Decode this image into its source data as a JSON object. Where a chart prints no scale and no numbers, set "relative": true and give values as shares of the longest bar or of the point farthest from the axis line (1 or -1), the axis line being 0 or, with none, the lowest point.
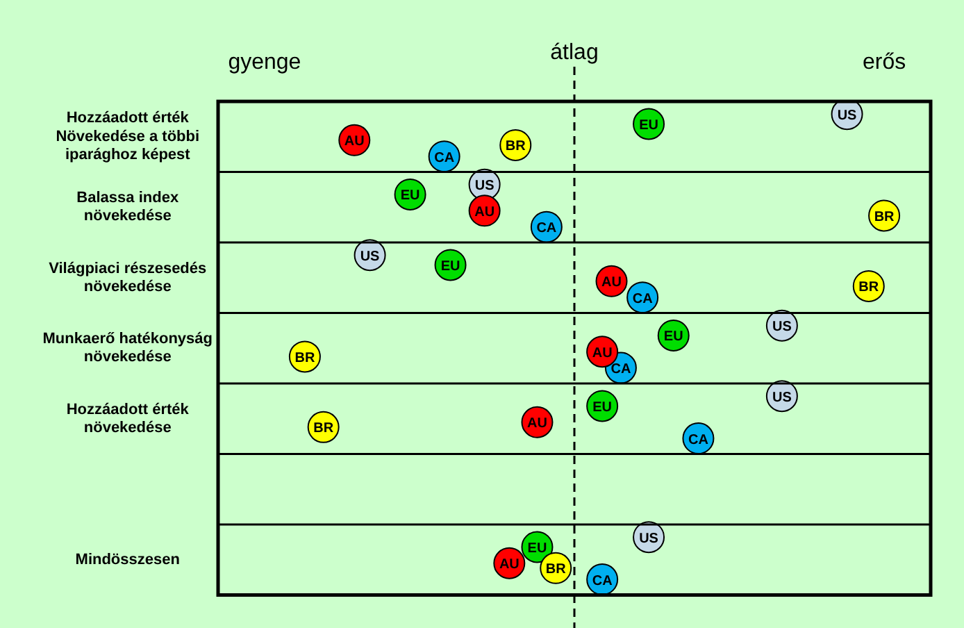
{
  "chart_data": {
    "type": "scatter",
    "orientation": "horizontal",
    "relative": true,
    "categories": [
      "Hozzáadott érték Növekedése a többi iparághoz képest",
      "Balassa index növekedése",
      "Világpiaci részesedés növekedése",
      "Munkaerő hatékonyság növekedése",
      "Hozzáadott érték növekedése",
      null,
      "Mindösszesen"
    ],
    "annotations": [
      "gyenge",
      "erős"
    ],
    "grid": "y",
    "legend": false,
    "marker": "circle",
    "ref_lines": [
      {
        "axis": "x",
        "value": 0,
        "label": "átlag",
        "line_style": "dashed",
        "color": "#000000"
      }
    ],
    "series": [
      {
        "name": "AU",
        "color": "#ff0000",
        "values": [
          -0.71,
          -0.29,
          0.12,
          0.09,
          -0.12,
          null,
          -0.21
        ]
      },
      {
        "name": "CA",
        "color": "#00b0f0",
        "values": [
          -0.42,
          -0.09,
          0.22,
          0.15,
          0.4,
          null,
          0.09
        ]
      },
      {
        "name": "BR",
        "color": "#ffff00",
        "values": [
          -0.19,
          1,
          0.95,
          -0.87,
          -0.81,
          null,
          -0.06
        ]
      },
      {
        "name": "EU",
        "color": "#00dd00",
        "values": [
          0.24,
          -0.53,
          -0.4,
          0.32,
          0.09,
          null,
          -0.12
        ]
      },
      {
        "name": "US",
        "color": "#c5d9e8",
        "values": [
          0.88,
          -0.29,
          -0.66,
          0.67,
          0.67,
          null,
          0.24
        ]
      }
    ]
  }
}
